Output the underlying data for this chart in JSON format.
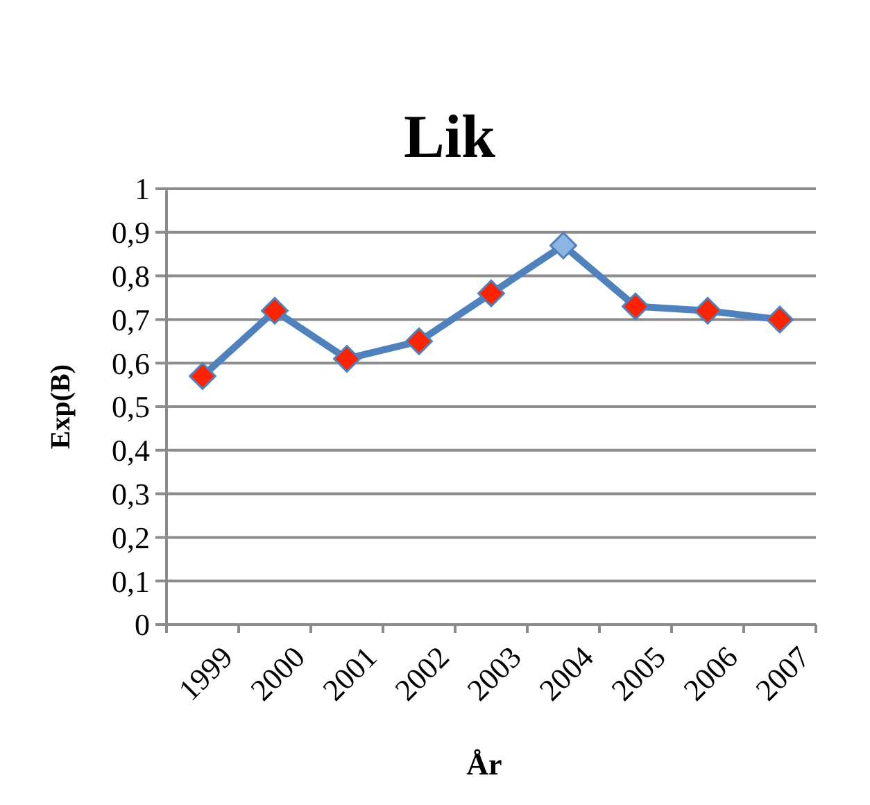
{
  "chart_data": {
    "type": "line",
    "title": "Lik",
    "xlabel": "År",
    "ylabel": "Exp(B)",
    "categories": [
      "1999",
      "2000",
      "2001",
      "2002",
      "2003",
      "2004",
      "2005",
      "2006",
      "2007"
    ],
    "series": [
      {
        "color": "#4f81bd",
        "values": [
          0.57,
          0.72,
          0.61,
          0.65,
          0.76,
          0.87,
          0.73,
          0.72,
          0.7
        ],
        "colors": [
          "#ff2200",
          "#ff2200",
          "#ff2200",
          "#ff2200",
          "#ff2200",
          "#8db4e2",
          "#ff2200",
          "#ff2200",
          "#ff2200"
        ]
      }
    ],
    "ylim": [
      0,
      1
    ],
    "yticks": [
      0,
      {
        "value": 0.1,
        "label": "0,1"
      },
      {
        "value": 0.2,
        "label": "0,2"
      },
      {
        "value": 0.3,
        "label": "0,3"
      },
      {
        "value": 0.4,
        "label": "0,4"
      },
      {
        "value": 0.5,
        "label": "0,5"
      },
      {
        "value": 0.6,
        "label": "0,6"
      },
      {
        "value": 0.7,
        "label": "0,7"
      },
      {
        "value": 0.8,
        "label": "0,8"
      },
      {
        "value": 0.9,
        "label": "0,9"
      },
      1
    ],
    "grid": "y",
    "marker": "diamond",
    "line_style": "solid"
  }
}
